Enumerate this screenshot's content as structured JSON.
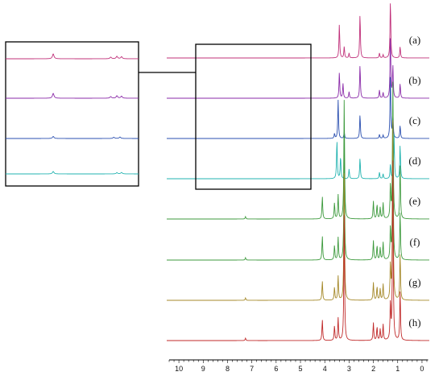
{
  "chart_data": {
    "type": "line",
    "xlabel": "",
    "ylabel": "",
    "xlim": [
      10.5,
      -0.3
    ],
    "x_reversed": true,
    "x_ticks": [
      10,
      9,
      8,
      7,
      6,
      5,
      4,
      3,
      2,
      1,
      0
    ],
    "grid": false,
    "inset": {
      "zoom_x": [
        8.8,
        4.5
      ],
      "shown_for": [
        "a",
        "b",
        "c",
        "d"
      ]
    },
    "series": [
      {
        "name": "(a)",
        "color": "#c0307a",
        "peaks": [
          [
            3.4,
            42
          ],
          [
            3.2,
            14
          ],
          [
            3.0,
            6
          ],
          [
            2.55,
            55
          ],
          [
            1.75,
            6
          ],
          [
            1.6,
            4
          ],
          [
            1.3,
            72
          ],
          [
            0.9,
            14
          ]
        ]
      },
      {
        "name": "(b)",
        "color": "#8a2aa8",
        "peaks": [
          [
            3.4,
            32
          ],
          [
            3.25,
            18
          ],
          [
            3.0,
            8
          ],
          [
            2.55,
            42
          ],
          [
            1.75,
            10
          ],
          [
            1.6,
            7
          ],
          [
            1.3,
            78
          ],
          [
            1.2,
            40
          ],
          [
            0.9,
            18
          ]
        ]
      },
      {
        "name": "(c)",
        "color": "#2a4fb0",
        "peaks": [
          [
            3.6,
            6
          ],
          [
            3.45,
            48
          ],
          [
            3.2,
            8
          ],
          [
            2.55,
            30
          ],
          [
            1.75,
            5
          ],
          [
            1.6,
            4
          ],
          [
            1.3,
            80
          ],
          [
            1.2,
            34
          ],
          [
            0.9,
            16
          ]
        ]
      },
      {
        "name": "(d)",
        "color": "#22b3b0",
        "peaks": [
          [
            3.5,
            48
          ],
          [
            3.35,
            28
          ],
          [
            3.0,
            12
          ],
          [
            2.55,
            26
          ],
          [
            1.75,
            8
          ],
          [
            1.6,
            6
          ],
          [
            1.3,
            18
          ],
          [
            1.15,
            55
          ],
          [
            0.9,
            42
          ]
        ]
      },
      {
        "name": "(e)",
        "color": "#3d9a3d",
        "peaks": [
          [
            7.26,
            3
          ],
          [
            4.1,
            28
          ],
          [
            3.6,
            20
          ],
          [
            3.45,
            30
          ],
          [
            3.2,
            150
          ],
          [
            2.0,
            22
          ],
          [
            1.85,
            18
          ],
          [
            1.72,
            14
          ],
          [
            1.6,
            20
          ],
          [
            1.3,
            42
          ],
          [
            1.2,
            175
          ],
          [
            0.9,
            68
          ]
        ]
      },
      {
        "name": "(f)",
        "color": "#3d9a3d",
        "peaks": [
          [
            7.26,
            3
          ],
          [
            4.1,
            30
          ],
          [
            3.6,
            18
          ],
          [
            3.45,
            28
          ],
          [
            3.2,
            148
          ],
          [
            2.0,
            24
          ],
          [
            1.85,
            18
          ],
          [
            1.72,
            15
          ],
          [
            1.6,
            22
          ],
          [
            1.3,
            40
          ],
          [
            1.2,
            180
          ],
          [
            0.9,
            60
          ]
        ]
      },
      {
        "name": "(g)",
        "color": "#a5892a",
        "peaks": [
          [
            7.26,
            3
          ],
          [
            4.1,
            24
          ],
          [
            3.6,
            16
          ],
          [
            3.45,
            30
          ],
          [
            3.2,
            160
          ],
          [
            2.0,
            22
          ],
          [
            1.85,
            17
          ],
          [
            1.72,
            14
          ],
          [
            1.6,
            20
          ],
          [
            1.3,
            44
          ],
          [
            1.2,
            230
          ],
          [
            0.9,
            58
          ]
        ]
      },
      {
        "name": "(h)",
        "color": "#c02a2a",
        "peaks": [
          [
            7.26,
            3
          ],
          [
            4.1,
            26
          ],
          [
            3.6,
            18
          ],
          [
            3.45,
            28
          ],
          [
            3.2,
            158
          ],
          [
            2.0,
            22
          ],
          [
            1.85,
            17
          ],
          [
            1.72,
            14
          ],
          [
            1.6,
            20
          ],
          [
            1.3,
            46
          ],
          [
            1.2,
            230
          ],
          [
            0.9,
            62
          ]
        ]
      }
    ]
  }
}
